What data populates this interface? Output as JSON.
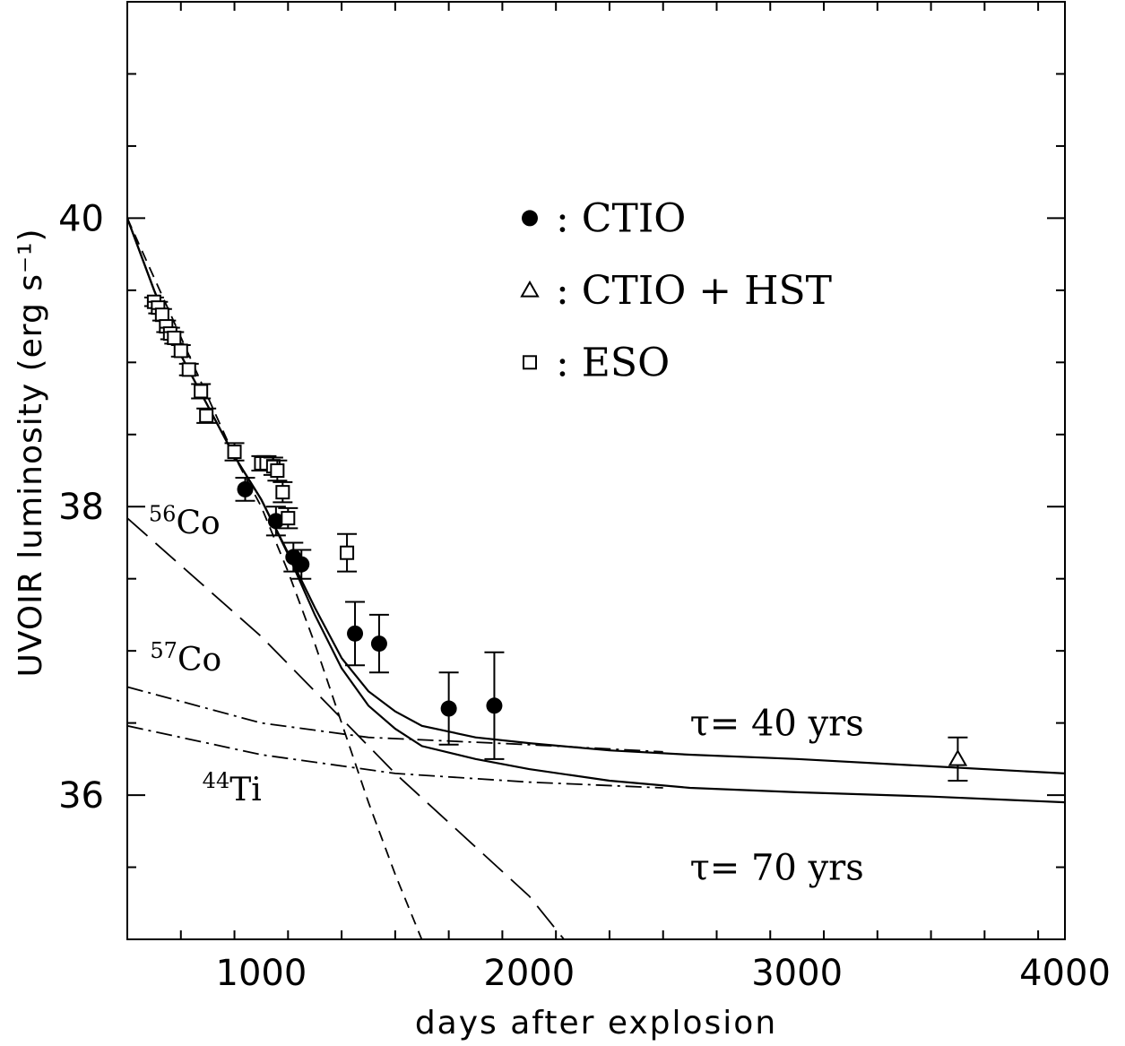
{
  "chart_data": {
    "type": "scatter",
    "xlabel": "days after explosion",
    "ylabel": "UVOIR luminosity (erg s⁻¹)",
    "xlim": [
      500,
      4000
    ],
    "ylim": [
      35,
      41.5
    ],
    "x_ticks": [
      1000,
      2000,
      3000,
      4000
    ],
    "y_ticks": [
      36,
      38,
      40
    ],
    "x_minor_step": 200,
    "y_minor_step": 0.5,
    "legend": {
      "placement": "upper-center",
      "entries": [
        {
          "marker": "filled-circle",
          "text": ": CTIO"
        },
        {
          "marker": "open-triangle",
          "text": ": CTIO + HST"
        },
        {
          "marker": "open-square",
          "text": ": ESO"
        }
      ]
    },
    "annotations": [
      {
        "sup": "56",
        "text": "Co",
        "x": 580,
        "y": 37.9
      },
      {
        "sup": "57",
        "text": "Co",
        "x": 585,
        "y": 36.95
      },
      {
        "sup": "44",
        "text": "Ti",
        "x": 780,
        "y": 36.05
      },
      {
        "text": "τ= 40 yrs",
        "x": 2600,
        "y": 36.5
      },
      {
        "text": "τ= 70 yrs",
        "x": 2600,
        "y": 35.5
      }
    ],
    "series": [
      {
        "name": "CTIO",
        "marker": "filled-circle",
        "points": [
          {
            "x": 940,
            "y": 38.12,
            "err": 0.08
          },
          {
            "x": 1055,
            "y": 37.9,
            "err": 0.1
          },
          {
            "x": 1120,
            "y": 37.65,
            "err": 0.1
          },
          {
            "x": 1150,
            "y": 37.6,
            "err": 0.1
          },
          {
            "x": 1350,
            "y": 37.12,
            "err": 0.22
          },
          {
            "x": 1440,
            "y": 37.05,
            "err": 0.2
          },
          {
            "x": 1700,
            "y": 36.6,
            "err": 0.25
          },
          {
            "x": 1870,
            "y": 36.62,
            "err": 0.37
          }
        ]
      },
      {
        "name": "CTIO + HST",
        "marker": "open-triangle",
        "points": [
          {
            "x": 3600,
            "y": 36.25,
            "err": 0.15
          }
        ]
      },
      {
        "name": "ESO",
        "marker": "open-square",
        "points": [
          {
            "x": 600,
            "y": 39.42,
            "err": 0.03
          },
          {
            "x": 615,
            "y": 39.38,
            "err": 0.04
          },
          {
            "x": 630,
            "y": 39.33,
            "err": 0.04
          },
          {
            "x": 645,
            "y": 39.25,
            "err": 0.04
          },
          {
            "x": 660,
            "y": 39.2,
            "err": 0.04
          },
          {
            "x": 675,
            "y": 39.17,
            "err": 0.04
          },
          {
            "x": 700,
            "y": 39.08,
            "err": 0.04
          },
          {
            "x": 730,
            "y": 38.95,
            "err": 0.04
          },
          {
            "x": 775,
            "y": 38.8,
            "err": 0.05
          },
          {
            "x": 795,
            "y": 38.63,
            "err": 0.05
          },
          {
            "x": 900,
            "y": 38.38,
            "err": 0.06
          },
          {
            "x": 1000,
            "y": 38.3,
            "err": 0.05
          },
          {
            "x": 1020,
            "y": 38.3,
            "err": 0.05
          },
          {
            "x": 1045,
            "y": 38.28,
            "err": 0.06
          },
          {
            "x": 1060,
            "y": 38.25,
            "err": 0.07
          },
          {
            "x": 1080,
            "y": 38.1,
            "err": 0.07
          },
          {
            "x": 1100,
            "y": 37.92,
            "err": 0.07
          },
          {
            "x": 1320,
            "y": 37.68,
            "err": 0.13
          }
        ]
      }
    ],
    "curves": [
      {
        "name": "τ= 40 yrs",
        "style": "solid",
        "points": [
          [
            500,
            40
          ],
          [
            600,
            39.5
          ],
          [
            700,
            39.05
          ],
          [
            800,
            38.7
          ],
          [
            900,
            38.35
          ],
          [
            1000,
            38.05
          ],
          [
            1100,
            37.68
          ],
          [
            1200,
            37.3
          ],
          [
            1300,
            36.95
          ],
          [
            1400,
            36.72
          ],
          [
            1500,
            36.58
          ],
          [
            1600,
            36.48
          ],
          [
            1800,
            36.4
          ],
          [
            2000,
            36.36
          ],
          [
            2300,
            36.31
          ],
          [
            2600,
            36.28
          ],
          [
            3000,
            36.25
          ],
          [
            3500,
            36.2
          ],
          [
            4000,
            36.15
          ]
        ]
      },
      {
        "name": "τ= 70 yrs",
        "style": "solid",
        "points": [
          [
            500,
            40
          ],
          [
            600,
            39.5
          ],
          [
            700,
            39.05
          ],
          [
            800,
            38.7
          ],
          [
            900,
            38.35
          ],
          [
            1000,
            38.05
          ],
          [
            1100,
            37.67
          ],
          [
            1200,
            37.25
          ],
          [
            1300,
            36.88
          ],
          [
            1400,
            36.62
          ],
          [
            1500,
            36.46
          ],
          [
            1600,
            36.34
          ],
          [
            1800,
            36.25
          ],
          [
            2000,
            36.18
          ],
          [
            2300,
            36.1
          ],
          [
            2600,
            36.05
          ],
          [
            3000,
            36.02
          ],
          [
            3500,
            35.99
          ],
          [
            4000,
            35.95
          ]
        ]
      },
      {
        "name": "56Co",
        "style": "short-dash",
        "points": [
          [
            500,
            40
          ],
          [
            900,
            38.35
          ],
          [
            1000,
            38.0
          ],
          [
            1100,
            37.55
          ],
          [
            1200,
            37.05
          ],
          [
            1300,
            36.5
          ],
          [
            1400,
            35.95
          ],
          [
            1500,
            35.45
          ],
          [
            1610,
            34.95
          ]
        ]
      },
      {
        "name": "57Co",
        "style": "long-dash",
        "points": [
          [
            500,
            37.92
          ],
          [
            1000,
            37.1
          ],
          [
            1500,
            36.15
          ],
          [
            2000,
            35.3
          ],
          [
            2130,
            35.0
          ]
        ]
      },
      {
        "name": "44Ti (40 yrs)",
        "style": "dash-dot",
        "points": [
          [
            500,
            36.75
          ],
          [
            1000,
            36.5
          ],
          [
            1400,
            36.4
          ],
          [
            2000,
            36.35
          ],
          [
            2500,
            36.3
          ]
        ]
      },
      {
        "name": "44Ti (70 yrs)",
        "style": "dash-dot",
        "points": [
          [
            500,
            36.48
          ],
          [
            1000,
            36.28
          ],
          [
            1500,
            36.15
          ],
          [
            2000,
            36.09
          ],
          [
            2500,
            36.05
          ]
        ]
      }
    ]
  }
}
